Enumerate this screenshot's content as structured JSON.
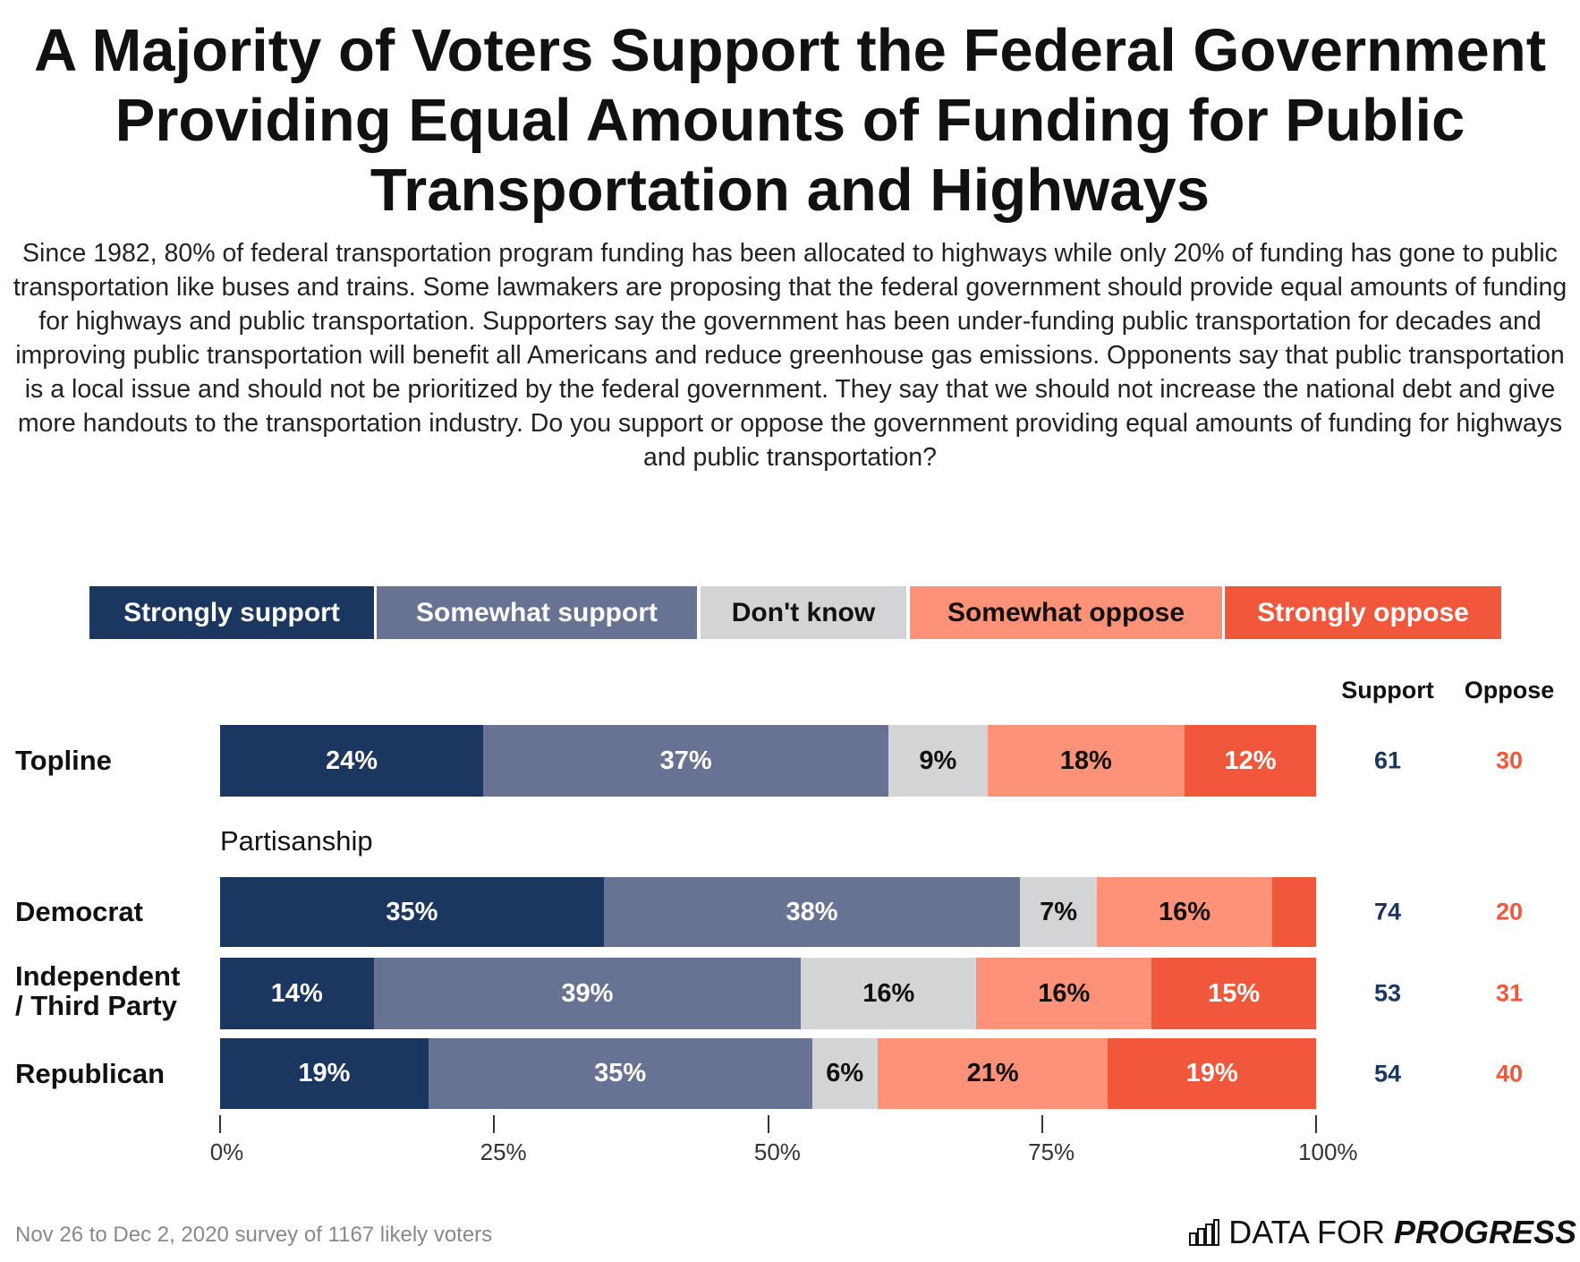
{
  "chart_data": {
    "type": "bar",
    "orientation": "horizontal-stacked",
    "title": "A Majority of Voters Support the Federal Government Providing Equal Amounts of Funding for Public Transportation and Highways",
    "subtitle": "Since 1982, 80% of federal transportation program funding has been allocated to highways while only 20% of funding has gone to public transportation like buses and trains. Some lawmakers are proposing that the federal government should provide equal amounts of funding for highways and public transportation. Supporters say the government has been under-funding public transportation for decades and improving public transportation will benefit all Americans and reduce greenhouse gas emissions. Opponents say that public transportation is a local issue and should not be prioritized by the federal government. They say that we should not increase the national debt and give more handouts to the transportation industry. Do you support or oppose the government providing equal amounts of funding for highways and public transportation?",
    "legend_position": "top",
    "series": [
      {
        "name": "Strongly support",
        "color": "#1b365f",
        "text_color": "#ffffff"
      },
      {
        "name": "Somewhat support",
        "color": "#687394",
        "text_color": "#ffffff"
      },
      {
        "name": "Don't know",
        "color": "#d3d4d6",
        "text_color": "#111111"
      },
      {
        "name": "Somewhat oppose",
        "color": "#fe9279",
        "text_color": "#111111"
      },
      {
        "name": "Strongly oppose",
        "color": "#f0573b",
        "text_color": "#ffffff"
      }
    ],
    "groups_label": "Partisanship",
    "rows": [
      {
        "label": "Topline",
        "values": [
          24,
          37,
          9,
          18,
          12
        ],
        "labels": [
          "24%",
          "37%",
          "9%",
          "18%",
          "12%"
        ],
        "support": "61",
        "oppose": "30"
      },
      {
        "label": "Democrat",
        "values": [
          35,
          38,
          7,
          16,
          4
        ],
        "labels": [
          "35%",
          "38%",
          "7%",
          "16%",
          ""
        ],
        "support": "74",
        "oppose": "20"
      },
      {
        "label": "Independent / Third Party",
        "values": [
          14,
          39,
          16,
          16,
          15
        ],
        "labels": [
          "14%",
          "39%",
          "16%",
          "16%",
          "15%"
        ],
        "support": "53",
        "oppose": "31"
      },
      {
        "label": "Republican",
        "values": [
          19,
          35,
          6,
          21,
          19
        ],
        "labels": [
          "19%",
          "35%",
          "6%",
          "21%",
          "19%"
        ],
        "support": "54",
        "oppose": "40"
      }
    ],
    "support_header": "Support",
    "oppose_header": "Oppose",
    "support_color": "#1b365f",
    "oppose_color": "#f0573b",
    "xlim": [
      0,
      100
    ],
    "xticks": [
      "0%",
      "25%",
      "50%",
      "75%",
      "100%"
    ],
    "grid": false
  },
  "footer": "Nov 26 to Dec 2, 2020 survey of 1167 likely voters",
  "logo": {
    "text_light": "DATA FOR",
    "text_bold": "PROGRESS"
  }
}
